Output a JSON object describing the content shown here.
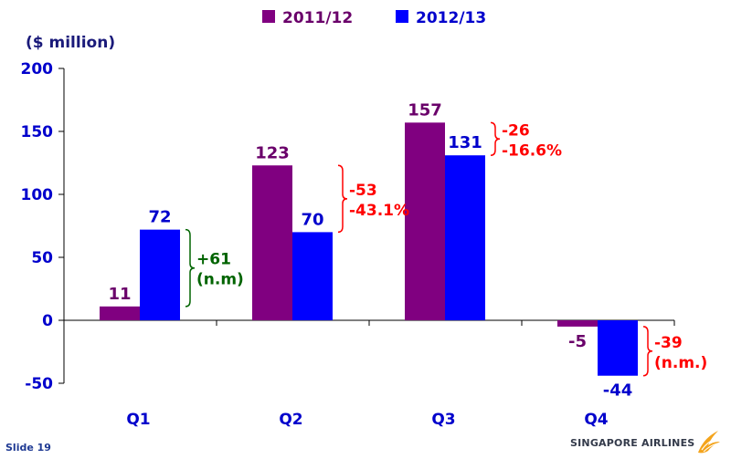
{
  "chart_data": {
    "type": "bar",
    "ylabel": "($ million)",
    "ylim": [
      -50,
      200
    ],
    "yticks": [
      -50,
      0,
      50,
      100,
      150,
      200
    ],
    "categories": [
      "Q1",
      "Q2",
      "Q3",
      "Q4"
    ],
    "series": [
      {
        "name": "2011/12",
        "values": [
          11,
          123,
          157,
          -5
        ],
        "color": "#800080"
      },
      {
        "name": "2012/13",
        "values": [
          72,
          70,
          131,
          -44
        ],
        "color": "#0000ff"
      }
    ],
    "legend": "top-center",
    "grid": false,
    "annotations": [
      {
        "category": "Q1",
        "lines": [
          "+61",
          "(n.m)"
        ],
        "color": "#006400"
      },
      {
        "category": "Q2",
        "lines": [
          "-53",
          "-43.1%"
        ],
        "color": "#ff0000"
      },
      {
        "category": "Q3",
        "lines": [
          "-26",
          "-16.6%"
        ],
        "color": "#ff0000"
      },
      {
        "category": "Q4",
        "lines": [
          "-39",
          "(n.m.)"
        ],
        "color": "#ff0000"
      }
    ]
  },
  "footer": {
    "slide": "Slide 19",
    "brand": "SINGAPORE AIRLINES",
    "logo_icon": "singapore-airlines-bird-logo"
  }
}
